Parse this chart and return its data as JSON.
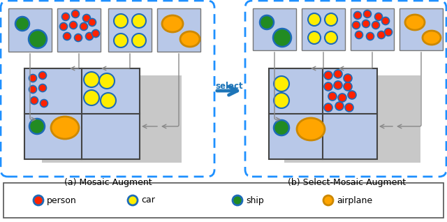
{
  "title_a": "(a) Mosaic Augment",
  "title_b": "(b) Select-Mosaic Augment",
  "select_text": "select",
  "box_bg": "#B8C8E8",
  "dashed_box_color": "#1E90FF",
  "arrow_color": "#1E75B8",
  "gray_bg": "#CCCCCC",
  "connector_color": "#888888",
  "white_bg": "#FFFFFF",
  "divider_color": "#444444",
  "box_edge": "#666666",
  "legend_labels": [
    "person",
    "car",
    "ship",
    "airplane"
  ],
  "legend_fcolors": [
    "#FF2200",
    "#FFEE00",
    "#228B22",
    "#FFA500"
  ],
  "legend_ecolors": [
    "#1E6BB8",
    "#1E6BB8",
    "#1E6BB8",
    "#CC8800"
  ],
  "person_color": "#FF2200",
  "person_edge": "#1E6BB8",
  "car_color": "#FFEE00",
  "car_edge": "#1E6BB8",
  "ship_color": "#228B22",
  "ship_edge": "#1E6BB8",
  "airplane_color": "#FFA500",
  "airplane_edge": "#CC8800"
}
